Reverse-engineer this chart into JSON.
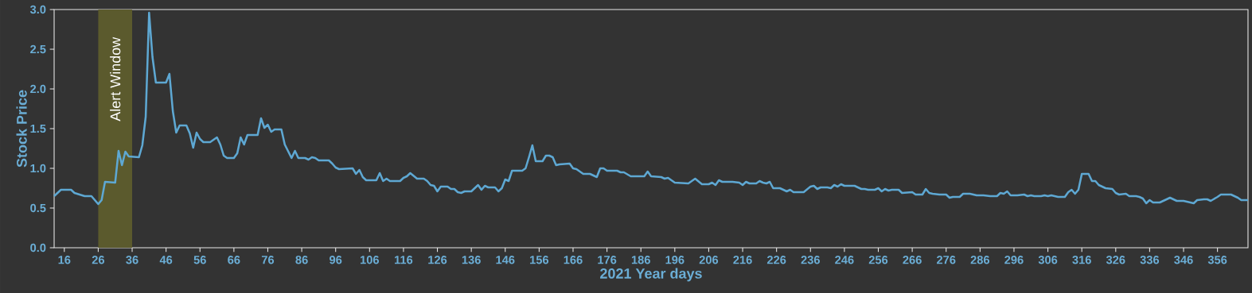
{
  "chart_data": {
    "type": "line",
    "xlabel": "2021 Year days",
    "ylabel": "Stock Price",
    "xlim": [
      13,
      365
    ],
    "ylim": [
      0,
      3
    ],
    "xticks": [
      16,
      26,
      36,
      46,
      56,
      66,
      76,
      86,
      96,
      106,
      116,
      126,
      136,
      146,
      156,
      166,
      176,
      186,
      196,
      206,
      216,
      226,
      236,
      246,
      256,
      266,
      276,
      286,
      296,
      306,
      316,
      326,
      336,
      346,
      356
    ],
    "yticks": [
      {
        "value": 0,
        "label": "0.0"
      },
      0.5,
      {
        "value": 1,
        "label": "1.0"
      },
      1.5,
      {
        "value": 2,
        "label": "2.0"
      },
      2.5,
      {
        "value": 3,
        "label": "3.0"
      }
    ],
    "bands": [
      {
        "axis": "x",
        "from": 26,
        "to": 36,
        "label": "Alert Window",
        "color": "#5b5a2d"
      }
    ],
    "grid": false,
    "legend": false,
    "marker": "none",
    "line_style": "solid",
    "series": [
      {
        "color": "#5ea8d3",
        "x": [
          13,
          15,
          18,
          19,
          22,
          24,
          26,
          27,
          28,
          31,
          32,
          33,
          34,
          35,
          38,
          39,
          40,
          41,
          42,
          43,
          46,
          47,
          48,
          49,
          50,
          52,
          53,
          54,
          55,
          56,
          57,
          59,
          61,
          62,
          63,
          64,
          66,
          67,
          68,
          69,
          70,
          73,
          74,
          75,
          76,
          77,
          78,
          80,
          81,
          83,
          84,
          85,
          87,
          88,
          89,
          90,
          91,
          94,
          95,
          96,
          97,
          101,
          102,
          103,
          104,
          105,
          108,
          109,
          110,
          111,
          112,
          115,
          116,
          117,
          118,
          120,
          122,
          123,
          124,
          125,
          126,
          127,
          129,
          130,
          131,
          132,
          133,
          134,
          136,
          137,
          138,
          139,
          140,
          141,
          143,
          144,
          145,
          146,
          147,
          148,
          151,
          152,
          153,
          154,
          155,
          157,
          158,
          159,
          160,
          161,
          162,
          165,
          166,
          167,
          169,
          171,
          173,
          174,
          175,
          176,
          179,
          180,
          181,
          183,
          187,
          188,
          189,
          192,
          193,
          194,
          196,
          200,
          202,
          204,
          206,
          207,
          208,
          209,
          210,
          213,
          215,
          216,
          217,
          218,
          220,
          221,
          222,
          223,
          224,
          225,
          227,
          229,
          230,
          231,
          234,
          236,
          237,
          238,
          239,
          241,
          242,
          243,
          244,
          245,
          246,
          249,
          251,
          252,
          253,
          255,
          256,
          257,
          258,
          259,
          260,
          262,
          263,
          266,
          267,
          269,
          270,
          271,
          272,
          274,
          276,
          277,
          278,
          280,
          281,
          283,
          285,
          287,
          289,
          291,
          292,
          293,
          294,
          295,
          297,
          299,
          300,
          301,
          302,
          304,
          305,
          306,
          307,
          309,
          311,
          312,
          313,
          314,
          315,
          316,
          318,
          319,
          320,
          321,
          323,
          325,
          326,
          327,
          329,
          330,
          332,
          333,
          334,
          335,
          336,
          337,
          339,
          340,
          342,
          344,
          346,
          348,
          349,
          350,
          352,
          353,
          354,
          356,
          357,
          360,
          362,
          363,
          365
        ],
        "values": [
          0.65,
          0.73,
          0.73,
          0.69,
          0.65,
          0.65,
          0.55,
          0.6,
          0.83,
          0.82,
          1.22,
          1.04,
          1.21,
          1.15,
          1.14,
          1.29,
          1.65,
          2.96,
          2.4,
          2.08,
          2.08,
          2.19,
          1.72,
          1.45,
          1.54,
          1.54,
          1.44,
          1.26,
          1.45,
          1.37,
          1.33,
          1.33,
          1.39,
          1.3,
          1.16,
          1.13,
          1.13,
          1.19,
          1.39,
          1.3,
          1.42,
          1.42,
          1.63,
          1.51,
          1.55,
          1.46,
          1.49,
          1.49,
          1.3,
          1.13,
          1.22,
          1.13,
          1.13,
          1.11,
          1.14,
          1.13,
          1.1,
          1.1,
          1.06,
          1.01,
          0.99,
          1.0,
          0.93,
          0.98,
          0.89,
          0.85,
          0.85,
          0.94,
          0.84,
          0.87,
          0.84,
          0.84,
          0.88,
          0.9,
          0.94,
          0.87,
          0.87,
          0.84,
          0.79,
          0.78,
          0.71,
          0.77,
          0.77,
          0.74,
          0.74,
          0.7,
          0.69,
          0.71,
          0.71,
          0.75,
          0.79,
          0.73,
          0.78,
          0.76,
          0.76,
          0.71,
          0.75,
          0.86,
          0.84,
          0.97,
          0.97,
          1.0,
          1.14,
          1.29,
          1.09,
          1.09,
          1.16,
          1.16,
          1.14,
          1.04,
          1.05,
          1.06,
          1.0,
          0.99,
          0.93,
          0.93,
          0.89,
          1.0,
          1.0,
          0.97,
          0.97,
          0.95,
          0.95,
          0.9,
          0.9,
          0.96,
          0.9,
          0.89,
          0.87,
          0.88,
          0.82,
          0.81,
          0.87,
          0.8,
          0.8,
          0.82,
          0.79,
          0.85,
          0.83,
          0.83,
          0.82,
          0.79,
          0.83,
          0.81,
          0.81,
          0.84,
          0.82,
          0.81,
          0.83,
          0.75,
          0.75,
          0.71,
          0.73,
          0.7,
          0.7,
          0.77,
          0.78,
          0.74,
          0.76,
          0.76,
          0.75,
          0.79,
          0.77,
          0.8,
          0.78,
          0.78,
          0.74,
          0.74,
          0.73,
          0.73,
          0.75,
          0.71,
          0.74,
          0.72,
          0.73,
          0.73,
          0.69,
          0.7,
          0.67,
          0.67,
          0.74,
          0.69,
          0.68,
          0.67,
          0.67,
          0.63,
          0.64,
          0.64,
          0.68,
          0.68,
          0.66,
          0.66,
          0.65,
          0.65,
          0.69,
          0.68,
          0.71,
          0.66,
          0.66,
          0.67,
          0.65,
          0.66,
          0.65,
          0.65,
          0.66,
          0.65,
          0.66,
          0.64,
          0.64,
          0.7,
          0.73,
          0.68,
          0.73,
          0.93,
          0.93,
          0.84,
          0.84,
          0.79,
          0.75,
          0.74,
          0.69,
          0.67,
          0.68,
          0.65,
          0.65,
          0.64,
          0.62,
          0.56,
          0.6,
          0.57,
          0.57,
          0.59,
          0.63,
          0.59,
          0.59,
          0.57,
          0.56,
          0.6,
          0.61,
          0.61,
          0.59,
          0.64,
          0.67,
          0.67,
          0.63,
          0.6,
          0.6
        ]
      }
    ]
  }
}
